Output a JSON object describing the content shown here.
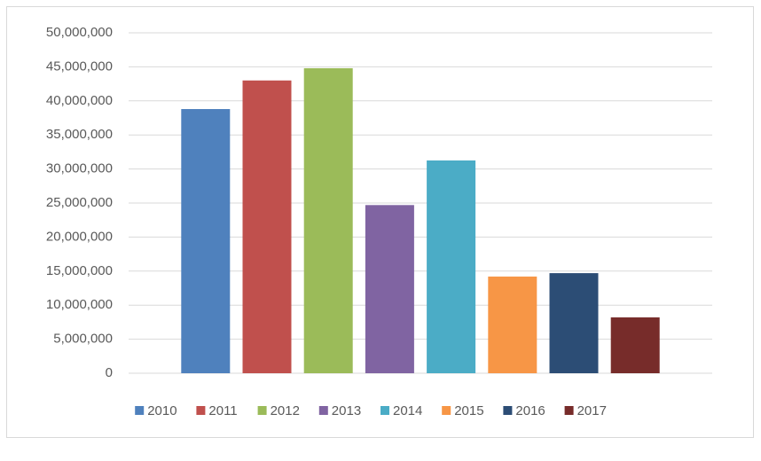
{
  "chart_data": {
    "type": "bar",
    "categories": [
      null
    ],
    "series": [
      {
        "name": "2010",
        "color": "#4f81bd",
        "values": [
          38800000
        ]
      },
      {
        "name": "2011",
        "color": "#c0504d",
        "values": [
          43000000
        ]
      },
      {
        "name": "2012",
        "color": "#9bbb59",
        "values": [
          44800000
        ]
      },
      {
        "name": "2013",
        "color": "#8064a2",
        "values": [
          24700000
        ]
      },
      {
        "name": "2014",
        "color": "#4bacc6",
        "values": [
          31250000
        ]
      },
      {
        "name": "2015",
        "color": "#f79646",
        "values": [
          14200000
        ]
      },
      {
        "name": "2016",
        "color": "#2c4d75",
        "values": [
          14700000
        ]
      },
      {
        "name": "2017",
        "color": "#772c2a",
        "values": [
          8200000
        ]
      }
    ],
    "ylim": [
      0,
      50000000
    ],
    "yticks": [
      0,
      {
        "value": 5000000,
        "label": "5,000,000"
      },
      {
        "value": 10000000,
        "label": "10,000,000"
      },
      {
        "value": 15000000,
        "label": "15,000,000"
      },
      {
        "value": 20000000,
        "label": "20,000,000"
      },
      {
        "value": 25000000,
        "label": "25,000,000"
      },
      {
        "value": 30000000,
        "label": "30,000,000"
      },
      {
        "value": 35000000,
        "label": "35,000,000"
      },
      {
        "value": 40000000,
        "label": "40,000,000"
      },
      {
        "value": 45000000,
        "label": "45,000,000"
      },
      {
        "value": 50000000,
        "label": "50,000,000"
      }
    ],
    "grid": true,
    "legend": "bottom"
  }
}
